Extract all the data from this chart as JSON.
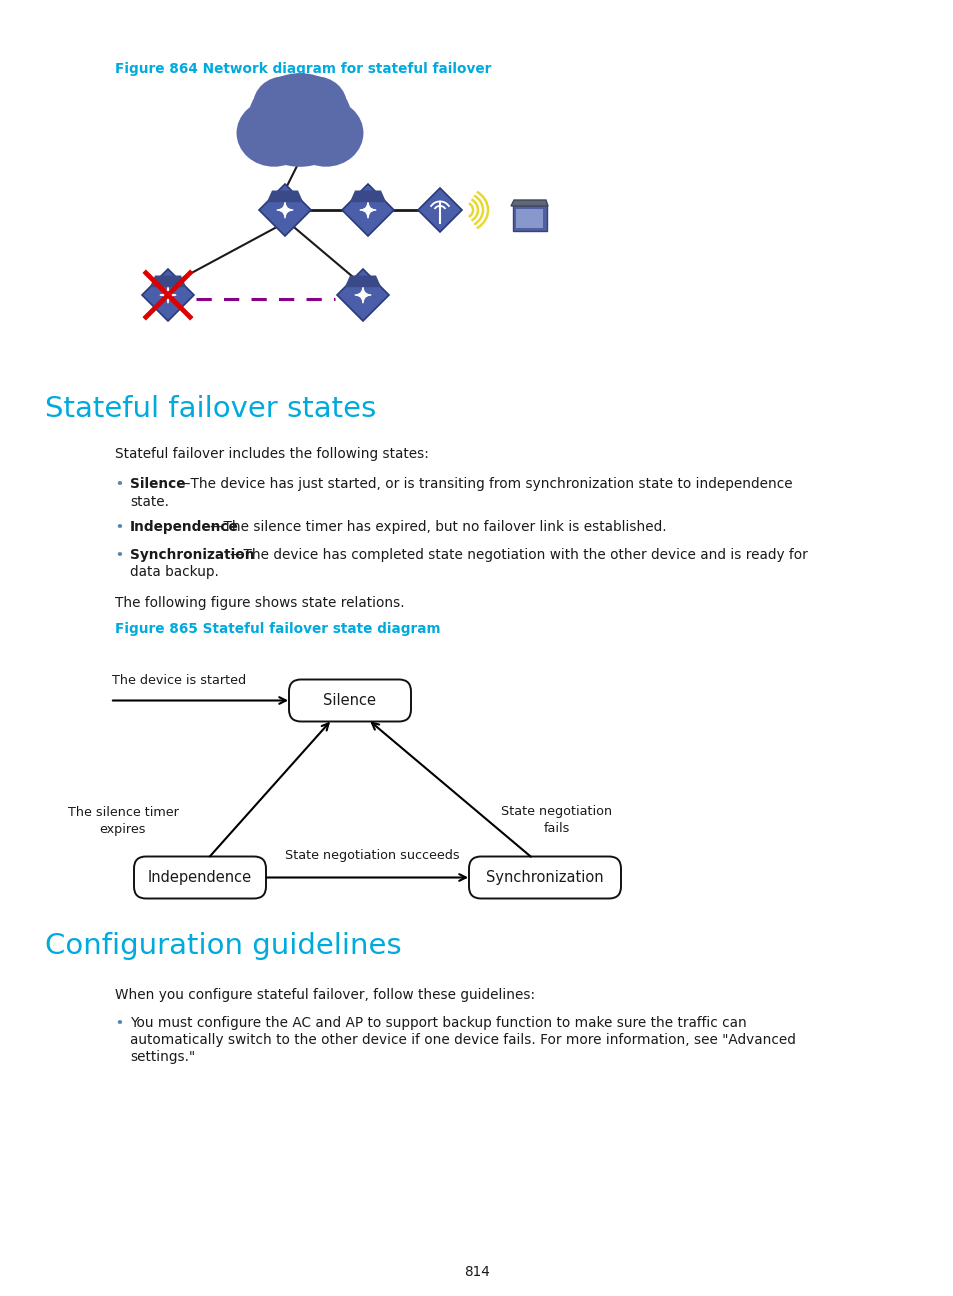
{
  "bg_color": "#ffffff",
  "page_number": "814",
  "fig864_title": "Figure 864 Network diagram for stateful failover",
  "fig865_title": "Figure 865 Stateful failover state diagram",
  "section1_title": "Stateful failover states",
  "section2_title": "Configuration guidelines",
  "cyan_color": "#00aadd",
  "text_color": "#1a1a1a",
  "para1": "Stateful failover includes the following states:",
  "bullet1_bold": "Silence",
  "bullet1_rest": "—The device has just started, or is transiting from synchronization state to independence",
  "bullet1_cont": "state.",
  "bullet2_bold": "Independence",
  "bullet2_rest": "—The silence timer has expired, but no failover link is established.",
  "bullet3_bold": "Synchronization",
  "bullet3_rest": "—The device has completed state negotiation with the other device and is ready for",
  "bullet3_cont": "data backup.",
  "para2": "The following figure shows state relations.",
  "para3": "When you configure stateful failover, follow these guidelines:",
  "bullet4_line1": "You must configure the AC and AP to support backup function to make sure the traffic can",
  "bullet4_line2": "automatically switch to the other device if one device fails. For more information, see \"Advanced",
  "bullet4_line3": "settings.\"",
  "node_silence": "Silence",
  "node_independence": "Independence",
  "node_sync": "Synchronization",
  "label_started": "The device is started",
  "label_silence_timer": "The silence timer\nexpires",
  "label_neg_fails": "State negotiation\nfails",
  "label_neg_succeeds": "State negotiation succeeds",
  "cloud_color": "#5b6baa",
  "switch_color": "#4a5eaa",
  "switch_edge": "#2a3a7a",
  "dashed_color": "#880088",
  "red_x_color": "#dd0000",
  "wifi_color": "#e8d830",
  "arrow_color": "#000000"
}
